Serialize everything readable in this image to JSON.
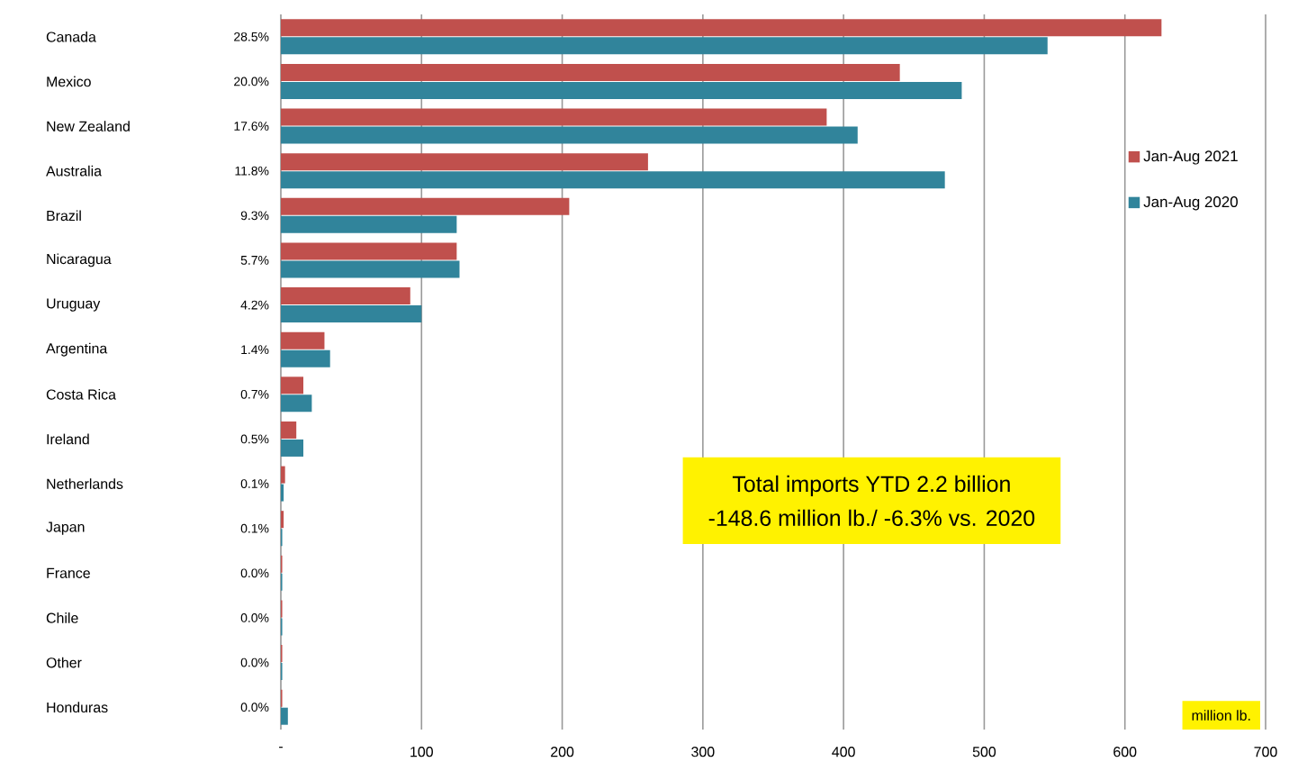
{
  "chart_data": {
    "type": "bar",
    "orientation": "horizontal",
    "xlabel": "million lb.",
    "categories": [
      "Canada",
      "Mexico",
      "New Zealand",
      "Australia",
      "Brazil",
      "Nicaragua",
      "Uruguay",
      "Argentina",
      "Costa Rica",
      "Ireland",
      "Netherlands",
      "Japan",
      "France",
      "Chile",
      "Other",
      "Honduras"
    ],
    "series": [
      {
        "name": "Jan-Aug 2021",
        "color": "#c0504d",
        "values": [
          626,
          440,
          388,
          261,
          205,
          125,
          92,
          31,
          16,
          11,
          3,
          2,
          1,
          1,
          1,
          1
        ]
      },
      {
        "name": "Jan-Aug 2020",
        "color": "#31849b",
        "values": [
          545,
          484,
          410,
          472,
          125,
          127,
          100,
          35,
          22,
          16,
          2,
          1,
          1,
          1,
          1,
          5
        ]
      }
    ],
    "xlim": [
      0,
      700
    ],
    "xticks": [
      {
        "value": 0,
        "label": "-"
      },
      100,
      200,
      300,
      400,
      500,
      600,
      700
    ],
    "grid": "x",
    "legend": "right",
    "annotations": [
      "Total imports YTD 2.2 billion",
      "-148.6 million lb./ -6.3% vs. 2020",
      "28.5%",
      "20.0%",
      "17.6%",
      "11.8%",
      "9.3%",
      "5.7%",
      "4.2%",
      "1.4%",
      "0.7%",
      "0.5%",
      "0.1%",
      "0.1%",
      "0.0%",
      "0.0%",
      "0.0%",
      "0.0%"
    ]
  }
}
